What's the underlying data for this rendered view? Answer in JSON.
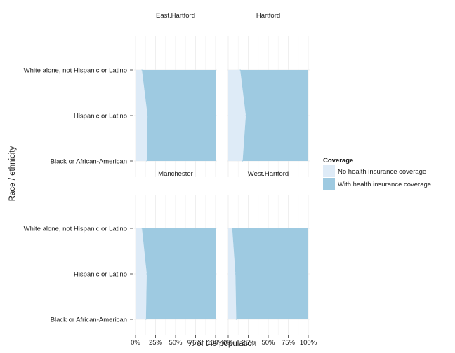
{
  "chart_data": {
    "type": "area",
    "xlabel": "% of the population",
    "ylabel": "Race / ethnicity",
    "xlim": [
      0,
      100
    ],
    "x_ticks": [
      "0%",
      "25%",
      "50%",
      "75%",
      "100%"
    ],
    "categories": [
      "Black or African-American",
      "Hispanic or Latino",
      "White alone, not Hispanic or Latino"
    ],
    "legend": {
      "title": "Coverage",
      "position": "right",
      "entries": [
        {
          "label": "No health insurance coverage",
          "color": "#deebf7"
        },
        {
          "label": "With health insurance coverage",
          "color": "#9ecae1"
        }
      ]
    },
    "panels": [
      {
        "title": "East.Hartford",
        "no_coverage": [
          14,
          15,
          8
        ],
        "with_coverage": [
          86,
          85,
          92
        ]
      },
      {
        "title": "Hartford",
        "no_coverage": [
          18,
          22,
          15
        ],
        "with_coverage": [
          82,
          78,
          85
        ]
      },
      {
        "title": "Manchester",
        "no_coverage": [
          13,
          14,
          8
        ],
        "with_coverage": [
          87,
          86,
          92
        ]
      },
      {
        "title": "West.Hartford",
        "no_coverage": [
          10,
          9,
          5
        ],
        "with_coverage": [
          90,
          91,
          95
        ]
      }
    ],
    "grid": true
  }
}
